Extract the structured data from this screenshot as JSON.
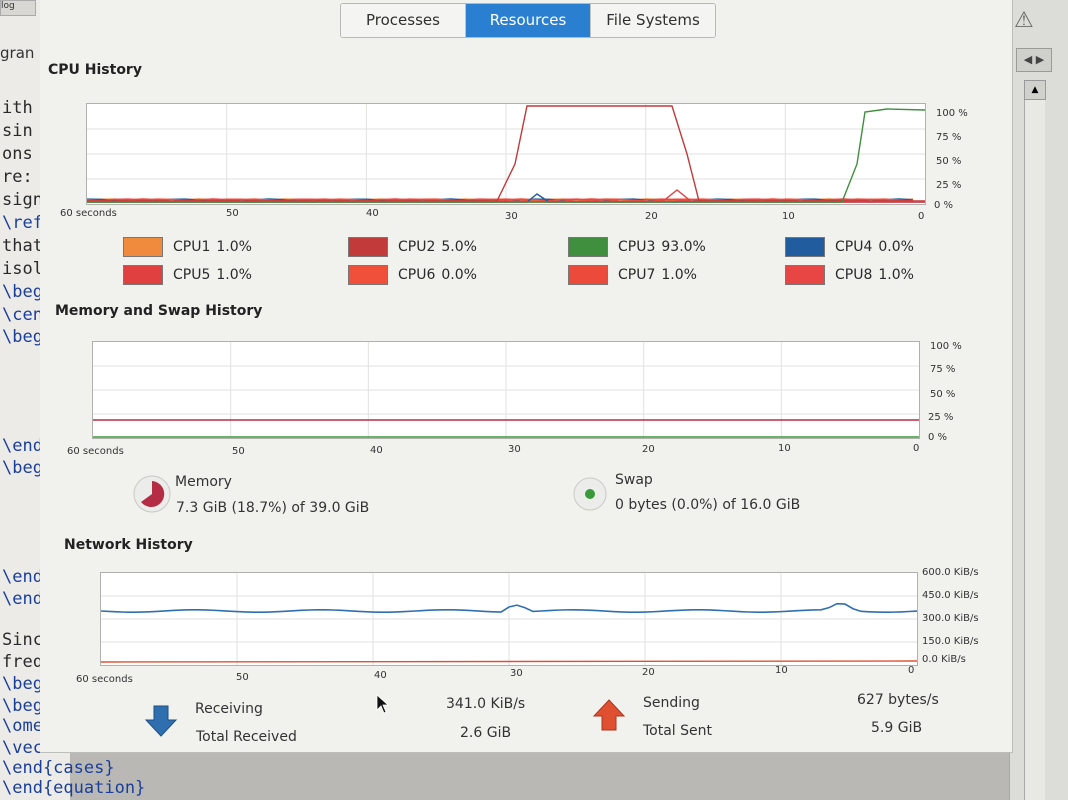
{
  "tabs": [
    "Processes",
    "Resources",
    "File Systems"
  ],
  "active_tab": "Resources",
  "background_editor": {
    "tab_label": "log",
    "label": "gran",
    "lines": [
      "ith",
      "sin",
      "ons",
      "re:",
      "sign",
      "\\ref",
      "that",
      "isol",
      "\\beg",
      "\\cen",
      "\\beg",
      "\\end",
      "\\beg",
      "\\end",
      "\\end",
      "Sinc",
      "freq",
      "\\beg",
      "\\beg",
      "\\ome",
      "\\vec",
      "\\end{cases}",
      "\\end{equation}"
    ]
  },
  "cpu": {
    "title": "CPU History",
    "x_labels": [
      "60 seconds",
      "50",
      "40",
      "30",
      "20",
      "10",
      "0"
    ],
    "y_labels": [
      "100 %",
      "75 %",
      "50 %",
      "25 %",
      "0 %"
    ],
    "legend": [
      {
        "name": "CPU1",
        "value": "1.0%",
        "color": "#f08a3c"
      },
      {
        "name": "CPU2",
        "value": "5.0%",
        "color": "#c23a3a"
      },
      {
        "name": "CPU3",
        "value": "93.0%",
        "color": "#3f8f3f"
      },
      {
        "name": "CPU4",
        "value": "0.0%",
        "color": "#215c9e"
      },
      {
        "name": "CPU5",
        "value": "1.0%",
        "color": "#e04040"
      },
      {
        "name": "CPU6",
        "value": "0.0%",
        "color": "#f0503a"
      },
      {
        "name": "CPU7",
        "value": "1.0%",
        "color": "#ec4a3a"
      },
      {
        "name": "CPU8",
        "value": "1.0%",
        "color": "#e84545"
      }
    ]
  },
  "memory": {
    "title": "Memory and Swap History",
    "x_labels": [
      "60 seconds",
      "50",
      "40",
      "30",
      "20",
      "10",
      "0"
    ],
    "y_labels": [
      "100 %",
      "75 %",
      "50 %",
      "25 %",
      "0 %"
    ],
    "memory_label": "Memory",
    "memory_value": "7.3 GiB (18.7%) of 39.0 GiB",
    "swap_label": "Swap",
    "swap_value": "0 bytes (0.0%) of 16.0 GiB",
    "memory_color": "#b52d44",
    "swap_color": "#3a9a3a"
  },
  "network": {
    "title": "Network History",
    "x_labels": [
      "60 seconds",
      "50",
      "40",
      "30",
      "20",
      "10",
      "0"
    ],
    "y_labels": [
      "600.0 KiB/s",
      "450.0 KiB/s",
      "300.0 KiB/s",
      "150.0 KiB/s",
      "0.0 KiB/s"
    ],
    "receiving_label": "Receiving",
    "receiving_value": "341.0 KiB/s",
    "total_received_label": "Total Received",
    "total_received_value": "2.6 GiB",
    "sending_label": "Sending",
    "sending_value": "627 bytes/s",
    "total_sent_label": "Total Sent",
    "total_sent_value": "5.9 GiB",
    "receiving_color": "#2f6fb0",
    "sending_color": "#e05030"
  }
}
